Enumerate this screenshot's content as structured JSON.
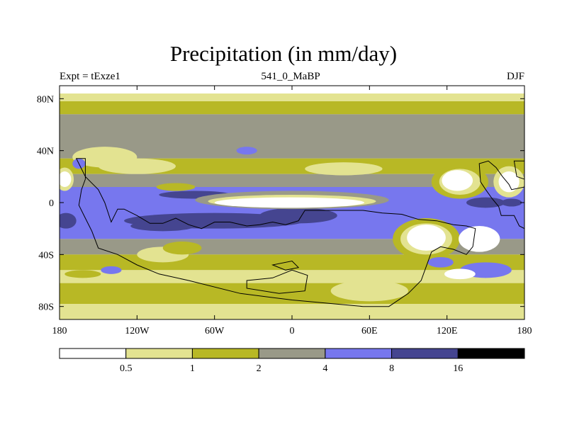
{
  "chart_data": {
    "type": "heatmap",
    "title": "Precipitation (in mm/day)",
    "subtitle_left": "Expt = tExze1",
    "subtitle_center": "541_0_MaBP",
    "subtitle_right": "DJF",
    "xlim": [
      -180,
      180
    ],
    "ylim": [
      -90,
      90
    ],
    "x_ticks": [
      {
        "value": -180,
        "label": "180"
      },
      {
        "value": -120,
        "label": "120W"
      },
      {
        "value": -60,
        "label": "60W"
      },
      {
        "value": 0,
        "label": "0"
      },
      {
        "value": 60,
        "label": "60E"
      },
      {
        "value": 120,
        "label": "120E"
      },
      {
        "value": 180,
        "label": "180"
      }
    ],
    "y_ticks": [
      {
        "value": 80,
        "label": "80N"
      },
      {
        "value": 40,
        "label": "40N"
      },
      {
        "value": 0,
        "label": "0"
      },
      {
        "value": -40,
        "label": "40S"
      },
      {
        "value": -80,
        "label": "80S"
      }
    ],
    "colorbar": {
      "levels": [
        "0.5",
        "1",
        "2",
        "4",
        "8",
        "16"
      ],
      "colors": [
        "#ffffff",
        "#e3e391",
        "#b8b825",
        "#999988",
        "#7777ee",
        "#454590",
        "#000000"
      ]
    },
    "zonal_bands": [
      {
        "lat_from": 90,
        "lat_to": 84,
        "class": 0
      },
      {
        "lat_from": 84,
        "lat_to": 78,
        "class": 1
      },
      {
        "lat_from": 78,
        "lat_to": 68,
        "class": 2
      },
      {
        "lat_from": 68,
        "lat_to": 34,
        "class": 3
      },
      {
        "lat_from": 34,
        "lat_to": 22,
        "class": 2
      },
      {
        "lat_from": 22,
        "lat_to": 12,
        "class": 3
      },
      {
        "lat_from": 12,
        "lat_to": -28,
        "class": 4
      },
      {
        "lat_from": -28,
        "lat_to": -40,
        "class": 3
      },
      {
        "lat_from": -40,
        "lat_to": -52,
        "class": 2
      },
      {
        "lat_from": -52,
        "lat_to": -62,
        "class": 1
      },
      {
        "lat_from": -62,
        "lat_to": -78,
        "class": 2
      },
      {
        "lat_from": -78,
        "lat_to": -90,
        "class": 1
      }
    ],
    "features": [
      {
        "lon": -60,
        "lat": -14,
        "rlon": 70,
        "rlat": 6,
        "class": 5
      },
      {
        "lon": -75,
        "lat": 6,
        "rlon": 28,
        "rlat": 3,
        "class": 5
      },
      {
        "lon": -100,
        "lat": -18,
        "rlon": 25,
        "rlat": 4,
        "class": 5
      },
      {
        "lon": 5,
        "lat": -10,
        "rlon": 30,
        "rlat": 6,
        "class": 5
      },
      {
        "lon": 0,
        "lat": 2,
        "rlon": 75,
        "rlat": 7,
        "class": 3
      },
      {
        "lon": 0,
        "lat": 1,
        "rlon": 65,
        "rlat": 5,
        "class": 1
      },
      {
        "lon": -2,
        "lat": 0,
        "rlon": 58,
        "rlat": 4,
        "class": 0
      },
      {
        "lon": 130,
        "lat": 16,
        "rlon": 22,
        "rlat": 13,
        "class": 2
      },
      {
        "lon": 130,
        "lat": 16,
        "rlon": 16,
        "rlat": 10,
        "class": 1
      },
      {
        "lon": 128,
        "lat": 17,
        "rlon": 12,
        "rlat": 8,
        "class": 0
      },
      {
        "lon": 168,
        "lat": 16,
        "rlon": 12,
        "rlat": 12,
        "class": 1
      },
      {
        "lon": 168,
        "lat": 16,
        "rlon": 8,
        "rlat": 8,
        "class": 0
      },
      {
        "lon": -176,
        "lat": 18,
        "rlon": 7,
        "rlat": 9,
        "class": 1
      },
      {
        "lon": -176,
        "lat": 18,
        "rlon": 5,
        "rlat": 6,
        "class": 0
      },
      {
        "lon": 104,
        "lat": -28,
        "rlon": 26,
        "rlat": 16,
        "class": 2
      },
      {
        "lon": 104,
        "lat": -28,
        "rlon": 20,
        "rlat": 12,
        "class": 1
      },
      {
        "lon": 104,
        "lat": -27,
        "rlon": 15,
        "rlat": 10,
        "class": 0
      },
      {
        "lon": 145,
        "lat": -28,
        "rlon": 16,
        "rlat": 10,
        "class": 0
      },
      {
        "lon": 150,
        "lat": 0,
        "rlon": 15,
        "rlat": 4,
        "class": 5
      },
      {
        "lon": 170,
        "lat": 0,
        "rlon": 8,
        "rlat": 3,
        "class": 5
      },
      {
        "lon": -175,
        "lat": -14,
        "rlon": 8,
        "rlat": 6,
        "class": 5
      },
      {
        "lon": -100,
        "lat": -40,
        "rlon": 20,
        "rlat": 6,
        "class": 1
      },
      {
        "lon": -85,
        "lat": -35,
        "rlon": 15,
        "rlat": 5,
        "class": 2
      },
      {
        "lon": 150,
        "lat": -52,
        "rlon": 20,
        "rlat": 6,
        "class": 4
      },
      {
        "lon": 115,
        "lat": -46,
        "rlon": 10,
        "rlat": 4,
        "class": 4
      },
      {
        "lon": -162,
        "lat": -55,
        "rlon": 14,
        "rlat": 3,
        "class": 2
      },
      {
        "lon": -140,
        "lat": -52,
        "rlon": 8,
        "rlat": 3,
        "class": 4
      },
      {
        "lon": 130,
        "lat": -55,
        "rlon": 12,
        "rlat": 4,
        "class": 0
      },
      {
        "lon": 60,
        "lat": -68,
        "rlon": 30,
        "rlat": 8,
        "class": 1
      },
      {
        "lon": -145,
        "lat": 35,
        "rlon": 25,
        "rlat": 8,
        "class": 1
      },
      {
        "lon": -120,
        "lat": 28,
        "rlon": 30,
        "rlat": 6,
        "class": 1
      },
      {
        "lon": 40,
        "lat": 26,
        "rlon": 30,
        "rlat": 5,
        "class": 1
      },
      {
        "lon": -35,
        "lat": 40,
        "rlon": 8,
        "rlat": 3,
        "class": 4
      },
      {
        "lon": -165,
        "lat": 30,
        "rlon": 5,
        "rlat": 4,
        "class": 4
      },
      {
        "lon": -90,
        "lat": 12,
        "rlon": 15,
        "rlat": 3,
        "class": 2
      }
    ],
    "coastlines": [
      {
        "name": "continent-west",
        "points": [
          [
            -167,
            34
          ],
          [
            -160,
            34
          ],
          [
            -160,
            18
          ],
          [
            -163,
            10
          ],
          [
            -165,
            -2
          ],
          [
            -160,
            -12
          ],
          [
            -155,
            -22
          ],
          [
            -150,
            -35
          ],
          [
            -135,
            -40
          ],
          [
            -120,
            -48
          ],
          [
            -103,
            -55
          ],
          [
            -80,
            -60
          ],
          [
            -40,
            -70
          ],
          [
            0,
            -75
          ],
          [
            55,
            -80
          ],
          [
            75,
            -80
          ],
          [
            90,
            -70
          ],
          [
            100,
            -60
          ],
          [
            108,
            -38
          ],
          [
            115,
            -34
          ],
          [
            125,
            -36
          ],
          [
            135,
            -40
          ],
          [
            140,
            -34
          ],
          [
            142,
            -20
          ],
          [
            135,
            -18
          ],
          [
            125,
            -17
          ],
          [
            112,
            -14
          ],
          [
            98,
            -13
          ],
          [
            85,
            -9
          ],
          [
            70,
            -8
          ],
          [
            55,
            -6
          ],
          [
            40,
            -6
          ],
          [
            20,
            -6
          ],
          [
            10,
            -6
          ],
          [
            5,
            -14
          ],
          [
            -5,
            -17
          ],
          [
            -15,
            -15
          ],
          [
            -25,
            -17
          ],
          [
            -35,
            -18
          ],
          [
            -48,
            -15
          ],
          [
            -60,
            -15
          ],
          [
            -70,
            -20
          ],
          [
            -80,
            -17
          ],
          [
            -90,
            -12
          ],
          [
            -100,
            -16
          ],
          [
            -110,
            -16
          ],
          [
            -120,
            -10
          ],
          [
            -130,
            -5
          ],
          [
            -135,
            -5
          ],
          [
            -140,
            -15
          ],
          [
            -145,
            0
          ],
          [
            -150,
            10
          ],
          [
            -160,
            20
          ],
          [
            -167,
            34
          ]
        ]
      },
      {
        "name": "continent-east",
        "points": [
          [
            145,
            30
          ],
          [
            152,
            32
          ],
          [
            158,
            27
          ],
          [
            163,
            20
          ],
          [
            168,
            14
          ],
          [
            170,
            10
          ],
          [
            180,
            12
          ],
          [
            180,
            -20
          ],
          [
            176,
            -18
          ],
          [
            172,
            -10
          ],
          [
            162,
            -10
          ],
          [
            160,
            -3
          ],
          [
            155,
            3
          ],
          [
            150,
            10
          ],
          [
            146,
            16
          ],
          [
            145,
            30
          ]
        ]
      },
      {
        "name": "continent-far-east",
        "points": [
          [
            172,
            32
          ],
          [
            180,
            32
          ],
          [
            180,
            18
          ],
          [
            174,
            20
          ],
          [
            172,
            32
          ]
        ]
      },
      {
        "name": "island-south-1",
        "points": [
          [
            -35,
            -60
          ],
          [
            -15,
            -58
          ],
          [
            0,
            -52
          ],
          [
            12,
            -56
          ],
          [
            10,
            -68
          ],
          [
            -10,
            -70
          ],
          [
            -35,
            -66
          ],
          [
            -35,
            -60
          ]
        ]
      },
      {
        "name": "island-south-2",
        "points": [
          [
            -15,
            -48
          ],
          [
            -5,
            -52
          ],
          [
            5,
            -50
          ],
          [
            0,
            -45
          ],
          [
            -15,
            -48
          ]
        ]
      }
    ]
  }
}
